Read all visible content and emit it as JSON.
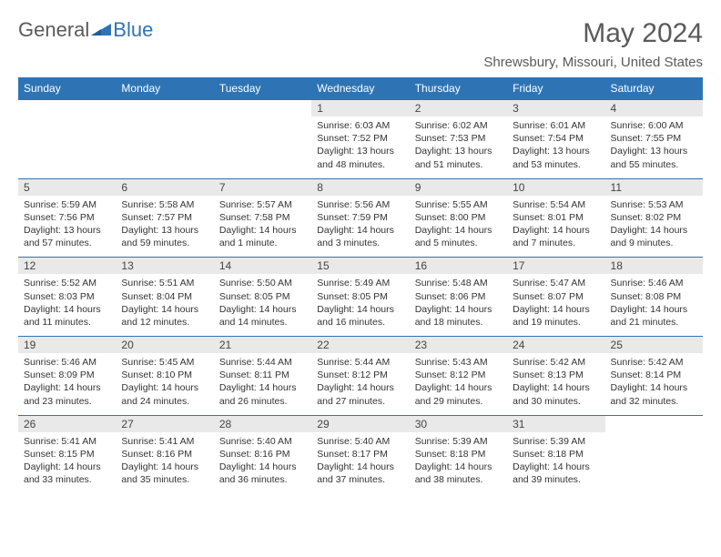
{
  "brand": {
    "general": "General",
    "blue": "Blue"
  },
  "title": "May 2024",
  "location": "Shrewsbury, Missouri, United States",
  "colors": {
    "accent": "#2e74b5",
    "grayband": "#e9e9e9",
    "text": "#5a5a5a"
  },
  "day_headers": [
    "Sunday",
    "Monday",
    "Tuesday",
    "Wednesday",
    "Thursday",
    "Friday",
    "Saturday"
  ],
  "weeks": [
    {
      "nums": [
        "",
        "",
        "",
        "1",
        "2",
        "3",
        "4"
      ],
      "cells": [
        null,
        null,
        null,
        {
          "sr": "Sunrise: 6:03 AM",
          "ss": "Sunset: 7:52 PM",
          "dl": "Daylight: 13 hours and 48 minutes."
        },
        {
          "sr": "Sunrise: 6:02 AM",
          "ss": "Sunset: 7:53 PM",
          "dl": "Daylight: 13 hours and 51 minutes."
        },
        {
          "sr": "Sunrise: 6:01 AM",
          "ss": "Sunset: 7:54 PM",
          "dl": "Daylight: 13 hours and 53 minutes."
        },
        {
          "sr": "Sunrise: 6:00 AM",
          "ss": "Sunset: 7:55 PM",
          "dl": "Daylight: 13 hours and 55 minutes."
        }
      ]
    },
    {
      "nums": [
        "5",
        "6",
        "7",
        "8",
        "9",
        "10",
        "11"
      ],
      "cells": [
        {
          "sr": "Sunrise: 5:59 AM",
          "ss": "Sunset: 7:56 PM",
          "dl": "Daylight: 13 hours and 57 minutes."
        },
        {
          "sr": "Sunrise: 5:58 AM",
          "ss": "Sunset: 7:57 PM",
          "dl": "Daylight: 13 hours and 59 minutes."
        },
        {
          "sr": "Sunrise: 5:57 AM",
          "ss": "Sunset: 7:58 PM",
          "dl": "Daylight: 14 hours and 1 minute."
        },
        {
          "sr": "Sunrise: 5:56 AM",
          "ss": "Sunset: 7:59 PM",
          "dl": "Daylight: 14 hours and 3 minutes."
        },
        {
          "sr": "Sunrise: 5:55 AM",
          "ss": "Sunset: 8:00 PM",
          "dl": "Daylight: 14 hours and 5 minutes."
        },
        {
          "sr": "Sunrise: 5:54 AM",
          "ss": "Sunset: 8:01 PM",
          "dl": "Daylight: 14 hours and 7 minutes."
        },
        {
          "sr": "Sunrise: 5:53 AM",
          "ss": "Sunset: 8:02 PM",
          "dl": "Daylight: 14 hours and 9 minutes."
        }
      ]
    },
    {
      "nums": [
        "12",
        "13",
        "14",
        "15",
        "16",
        "17",
        "18"
      ],
      "cells": [
        {
          "sr": "Sunrise: 5:52 AM",
          "ss": "Sunset: 8:03 PM",
          "dl": "Daylight: 14 hours and 11 minutes."
        },
        {
          "sr": "Sunrise: 5:51 AM",
          "ss": "Sunset: 8:04 PM",
          "dl": "Daylight: 14 hours and 12 minutes."
        },
        {
          "sr": "Sunrise: 5:50 AM",
          "ss": "Sunset: 8:05 PM",
          "dl": "Daylight: 14 hours and 14 minutes."
        },
        {
          "sr": "Sunrise: 5:49 AM",
          "ss": "Sunset: 8:05 PM",
          "dl": "Daylight: 14 hours and 16 minutes."
        },
        {
          "sr": "Sunrise: 5:48 AM",
          "ss": "Sunset: 8:06 PM",
          "dl": "Daylight: 14 hours and 18 minutes."
        },
        {
          "sr": "Sunrise: 5:47 AM",
          "ss": "Sunset: 8:07 PM",
          "dl": "Daylight: 14 hours and 19 minutes."
        },
        {
          "sr": "Sunrise: 5:46 AM",
          "ss": "Sunset: 8:08 PM",
          "dl": "Daylight: 14 hours and 21 minutes."
        }
      ]
    },
    {
      "nums": [
        "19",
        "20",
        "21",
        "22",
        "23",
        "24",
        "25"
      ],
      "cells": [
        {
          "sr": "Sunrise: 5:46 AM",
          "ss": "Sunset: 8:09 PM",
          "dl": "Daylight: 14 hours and 23 minutes."
        },
        {
          "sr": "Sunrise: 5:45 AM",
          "ss": "Sunset: 8:10 PM",
          "dl": "Daylight: 14 hours and 24 minutes."
        },
        {
          "sr": "Sunrise: 5:44 AM",
          "ss": "Sunset: 8:11 PM",
          "dl": "Daylight: 14 hours and 26 minutes."
        },
        {
          "sr": "Sunrise: 5:44 AM",
          "ss": "Sunset: 8:12 PM",
          "dl": "Daylight: 14 hours and 27 minutes."
        },
        {
          "sr": "Sunrise: 5:43 AM",
          "ss": "Sunset: 8:12 PM",
          "dl": "Daylight: 14 hours and 29 minutes."
        },
        {
          "sr": "Sunrise: 5:42 AM",
          "ss": "Sunset: 8:13 PM",
          "dl": "Daylight: 14 hours and 30 minutes."
        },
        {
          "sr": "Sunrise: 5:42 AM",
          "ss": "Sunset: 8:14 PM",
          "dl": "Daylight: 14 hours and 32 minutes."
        }
      ]
    },
    {
      "nums": [
        "26",
        "27",
        "28",
        "29",
        "30",
        "31",
        ""
      ],
      "cells": [
        {
          "sr": "Sunrise: 5:41 AM",
          "ss": "Sunset: 8:15 PM",
          "dl": "Daylight: 14 hours and 33 minutes."
        },
        {
          "sr": "Sunrise: 5:41 AM",
          "ss": "Sunset: 8:16 PM",
          "dl": "Daylight: 14 hours and 35 minutes."
        },
        {
          "sr": "Sunrise: 5:40 AM",
          "ss": "Sunset: 8:16 PM",
          "dl": "Daylight: 14 hours and 36 minutes."
        },
        {
          "sr": "Sunrise: 5:40 AM",
          "ss": "Sunset: 8:17 PM",
          "dl": "Daylight: 14 hours and 37 minutes."
        },
        {
          "sr": "Sunrise: 5:39 AM",
          "ss": "Sunset: 8:18 PM",
          "dl": "Daylight: 14 hours and 38 minutes."
        },
        {
          "sr": "Sunrise: 5:39 AM",
          "ss": "Sunset: 8:18 PM",
          "dl": "Daylight: 14 hours and 39 minutes."
        },
        null
      ]
    }
  ]
}
